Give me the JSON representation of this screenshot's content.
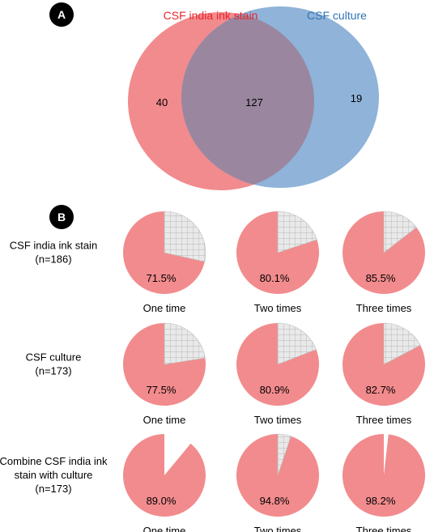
{
  "panels": {
    "a_label": "A",
    "b_label": "B"
  },
  "colors": {
    "pink": "#f28b8d",
    "blue": "#8fb3d9",
    "overlap": "#9a879f",
    "red_text": "#e8262d",
    "blue_text": "#2e74b5",
    "hatch": "#e9e9e9",
    "badge": "#000000"
  },
  "chart_data": [
    {
      "type": "venn",
      "sets": [
        {
          "name": "CSF india ink stain",
          "only": 40
        },
        {
          "name": "CSF culture",
          "only": 19
        }
      ],
      "intersection": 127
    },
    {
      "type": "pie",
      "rows": [
        {
          "label_lines": [
            "CSF india ink stain",
            "(n=186)"
          ],
          "pies": [
            {
              "percent": 71.5,
              "label": "71.5%",
              "caption": "One time"
            },
            {
              "percent": 80.1,
              "label": "80.1%",
              "caption": "Two times"
            },
            {
              "percent": 85.5,
              "label": "85.5%",
              "caption": "Three times"
            }
          ]
        },
        {
          "label_lines": [
            "CSF culture",
            "(n=173)"
          ],
          "pies": [
            {
              "percent": 77.5,
              "label": "77.5%",
              "caption": "One time"
            },
            {
              "percent": 80.9,
              "label": "80.9%",
              "caption": "Two times"
            },
            {
              "percent": 82.7,
              "label": "82.7%",
              "caption": "Three times"
            }
          ]
        },
        {
          "label_lines": [
            "Combine CSF india ink",
            "stain with culture",
            "(n=173)"
          ],
          "pies": [
            {
              "percent": 89.0,
              "label": "89.0%",
              "caption": "One time"
            },
            {
              "percent": 94.8,
              "label": "94.8%",
              "caption": "Two times"
            },
            {
              "percent": 98.2,
              "label": "98.2%",
              "caption": "Three times"
            }
          ]
        }
      ]
    }
  ]
}
